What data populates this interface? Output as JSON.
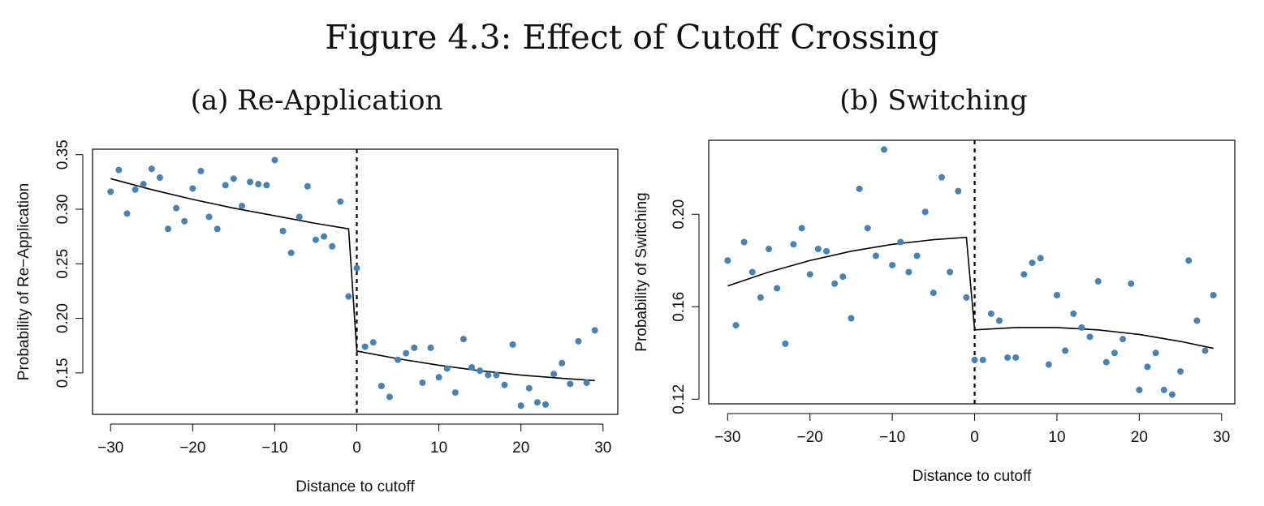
{
  "figure_title": "Figure 4.3: Effect of Cutoff Crossing",
  "chart_data": [
    {
      "type": "scatter",
      "title": "(a) Re-Application",
      "xlabel": "Distance to cutoff",
      "ylabel": "Probability of Re−Application",
      "xlim": [
        -32.2,
        31.8
      ],
      "ylim": [
        0.112,
        0.355
      ],
      "xticks": [
        -30,
        -20,
        -10,
        0,
        10,
        20,
        30
      ],
      "xtick_labels": [
        "−30",
        "−20",
        "−10",
        "0",
        "10",
        "20",
        "30"
      ],
      "yticks": [
        0.15,
        0.2,
        0.25,
        0.3,
        0.35
      ],
      "ytick_labels": [
        "0.15",
        "0.20",
        "0.25",
        "0.30",
        "0.35"
      ],
      "cutoff": 0,
      "point_color": "#4682B4",
      "points": {
        "x": [
          -30,
          -29,
          -28,
          -27,
          -26,
          -25,
          -24,
          -23,
          -22,
          -21,
          -20,
          -19,
          -18,
          -17,
          -16,
          -15,
          -14,
          -13,
          -12,
          -11,
          -10,
          -9,
          -8,
          -7,
          -6,
          -5,
          -4,
          -3,
          -2,
          -1,
          0,
          1,
          2,
          3,
          4,
          5,
          6,
          7,
          8,
          9,
          10,
          11,
          12,
          13,
          14,
          15,
          16,
          17,
          18,
          19,
          20,
          21,
          22,
          23,
          24,
          25,
          26,
          27,
          28,
          29
        ],
        "y": [
          0.316,
          0.336,
          0.296,
          0.318,
          0.323,
          0.337,
          0.329,
          0.282,
          0.301,
          0.289,
          0.319,
          0.335,
          0.293,
          0.282,
          0.322,
          0.328,
          0.303,
          0.325,
          0.323,
          0.322,
          0.345,
          0.28,
          0.26,
          0.293,
          0.321,
          0.272,
          0.275,
          0.266,
          0.307,
          0.22,
          0.246,
          0.174,
          0.178,
          0.138,
          0.128,
          0.162,
          0.168,
          0.173,
          0.141,
          0.173,
          0.146,
          0.154,
          0.132,
          0.181,
          0.155,
          0.152,
          0.148,
          0.148,
          0.139,
          0.176,
          0.12,
          0.136,
          0.123,
          0.121,
          0.149,
          0.159,
          0.14,
          0.179,
          0.141,
          0.189
        ]
      },
      "fit_left": {
        "x": [
          -30,
          -25,
          -20,
          -15,
          -10,
          -5,
          -1
        ],
        "y": [
          0.328,
          0.318,
          0.309,
          0.301,
          0.294,
          0.287,
          0.282
        ]
      },
      "fit_right": {
        "x": [
          0,
          5,
          10,
          15,
          20,
          25,
          29
        ],
        "y": [
          0.17,
          0.163,
          0.157,
          0.152,
          0.148,
          0.145,
          0.143
        ]
      }
    },
    {
      "type": "scatter",
      "title": "(b) Switching",
      "xlabel": "Distance to cutoff",
      "ylabel": "Probability of Switching",
      "xlim": [
        -32.3,
        31.6
      ],
      "ylim": [
        0.118,
        0.232
      ],
      "xticks": [
        -30,
        -20,
        -10,
        0,
        10,
        20,
        30
      ],
      "xtick_labels": [
        "−30",
        "−20",
        "−10",
        "0",
        "10",
        "20",
        "30"
      ],
      "yticks": [
        0.12,
        0.16,
        0.2
      ],
      "ytick_labels": [
        "0.12",
        "0.16",
        "0.20"
      ],
      "cutoff": 0,
      "point_color": "#4682B4",
      "points": {
        "x": [
          -30,
          -29,
          -28,
          -27,
          -26,
          -25,
          -24,
          -23,
          -22,
          -21,
          -20,
          -19,
          -18,
          -17,
          -16,
          -15,
          -14,
          -13,
          -12,
          -11,
          -10,
          -9,
          -8,
          -7,
          -6,
          -5,
          -4,
          -3,
          -2,
          -1,
          0,
          1,
          2,
          3,
          4,
          5,
          6,
          7,
          8,
          9,
          10,
          11,
          12,
          13,
          14,
          15,
          16,
          17,
          18,
          19,
          20,
          21,
          22,
          23,
          24,
          25,
          26,
          27,
          28,
          29
        ],
        "y": [
          0.18,
          0.152,
          0.188,
          0.175,
          0.164,
          0.185,
          0.168,
          0.144,
          0.187,
          0.194,
          0.174,
          0.185,
          0.184,
          0.17,
          0.173,
          0.155,
          0.211,
          0.194,
          0.182,
          0.228,
          0.178,
          0.188,
          0.175,
          0.182,
          0.201,
          0.166,
          0.216,
          0.175,
          0.21,
          0.164,
          0.137,
          0.137,
          0.157,
          0.154,
          0.138,
          0.138,
          0.174,
          0.179,
          0.181,
          0.135,
          0.165,
          0.141,
          0.157,
          0.151,
          0.147,
          0.171,
          0.136,
          0.14,
          0.146,
          0.17,
          0.124,
          0.134,
          0.14,
          0.124,
          0.122,
          0.132,
          0.18,
          0.154,
          0.141,
          0.165
        ]
      },
      "fit_left": {
        "x": [
          -30,
          -25,
          -20,
          -15,
          -10,
          -5,
          -1
        ],
        "y": [
          0.169,
          0.175,
          0.18,
          0.184,
          0.187,
          0.189,
          0.19
        ]
      },
      "fit_right": {
        "x": [
          0,
          5,
          10,
          15,
          20,
          25,
          29
        ],
        "y": [
          0.15,
          0.151,
          0.151,
          0.15,
          0.148,
          0.145,
          0.142
        ]
      }
    }
  ]
}
